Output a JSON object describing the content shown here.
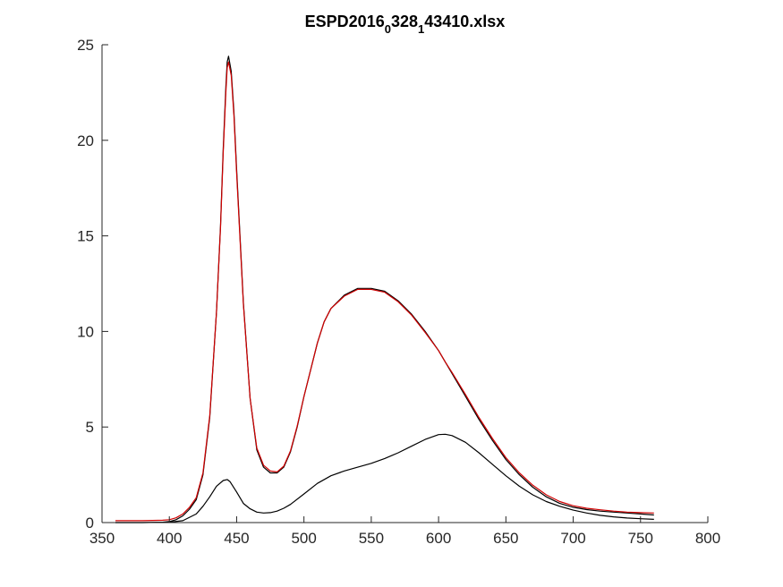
{
  "chart_data": {
    "type": "line",
    "title": {
      "parts": [
        {
          "text": "ESPD2016",
          "sub": false
        },
        {
          "text": "0",
          "sub": true
        },
        {
          "text": "328",
          "sub": false
        },
        {
          "text": "1",
          "sub": true
        },
        {
          "text": "43410.xlsx",
          "sub": false
        }
      ]
    },
    "xlabel": "",
    "ylabel": "",
    "xlim": [
      350,
      800
    ],
    "ylim": [
      0,
      25
    ],
    "xticks": [
      "350",
      "400",
      "450",
      "500",
      "550",
      "600",
      "650",
      "700",
      "750",
      "800"
    ],
    "yticks": [
      "0",
      "5",
      "10",
      "15",
      "20",
      "25"
    ],
    "grid": false,
    "legend": "none",
    "series": [
      {
        "color": "#000000",
        "x": [
          360,
          380,
          395,
          400,
          405,
          410,
          415,
          420,
          425,
          430,
          435,
          438,
          440,
          442,
          443,
          444,
          446,
          448,
          450,
          455,
          460,
          465,
          470,
          475,
          480,
          485,
          490,
          495,
          500,
          505,
          510,
          515,
          520,
          530,
          540,
          550,
          560,
          570,
          580,
          590,
          600,
          605,
          610,
          620,
          630,
          640,
          650,
          660,
          670,
          680,
          690,
          700,
          710,
          720,
          730,
          740,
          750,
          760
        ],
        "y": [
          0.0,
          0.0,
          0.02,
          0.05,
          0.15,
          0.35,
          0.7,
          1.2,
          2.5,
          5.5,
          11.0,
          15.5,
          19.5,
          22.8,
          24.1,
          24.4,
          23.6,
          21.5,
          18.5,
          11.5,
          6.5,
          3.8,
          2.9,
          2.6,
          2.6,
          2.9,
          3.7,
          5.0,
          6.6,
          8.0,
          9.4,
          10.5,
          11.2,
          11.9,
          12.25,
          12.25,
          12.1,
          11.6,
          10.9,
          10.0,
          9.0,
          8.4,
          7.8,
          6.6,
          5.4,
          4.3,
          3.3,
          2.5,
          1.85,
          1.35,
          1.0,
          0.8,
          0.68,
          0.6,
          0.55,
          0.5,
          0.45,
          0.4
        ]
      },
      {
        "color": "#d00000",
        "x": [
          360,
          380,
          395,
          400,
          405,
          410,
          415,
          420,
          425,
          430,
          435,
          438,
          440,
          442,
          443,
          444,
          446,
          448,
          450,
          455,
          460,
          465,
          470,
          475,
          480,
          485,
          490,
          495,
          500,
          505,
          510,
          515,
          520,
          530,
          540,
          550,
          560,
          570,
          580,
          590,
          600,
          605,
          610,
          620,
          630,
          640,
          650,
          660,
          670,
          680,
          690,
          700,
          710,
          720,
          730,
          740,
          750,
          760
        ],
        "y": [
          0.1,
          0.1,
          0.12,
          0.15,
          0.25,
          0.45,
          0.8,
          1.3,
          2.6,
          5.6,
          11.0,
          15.4,
          19.3,
          22.5,
          23.8,
          24.1,
          23.4,
          21.3,
          18.3,
          11.4,
          6.5,
          3.9,
          3.0,
          2.7,
          2.65,
          2.95,
          3.75,
          5.05,
          6.6,
          8.0,
          9.4,
          10.5,
          11.2,
          11.85,
          12.2,
          12.2,
          12.05,
          11.55,
          10.85,
          9.95,
          9.0,
          8.4,
          7.85,
          6.7,
          5.5,
          4.4,
          3.4,
          2.6,
          1.95,
          1.45,
          1.1,
          0.88,
          0.75,
          0.67,
          0.6,
          0.55,
          0.52,
          0.5
        ]
      },
      {
        "color": "#000000",
        "x": [
          360,
          380,
          400,
          410,
          420,
          425,
          430,
          435,
          440,
          443,
          445,
          450,
          455,
          460,
          465,
          470,
          475,
          480,
          485,
          490,
          500,
          510,
          520,
          530,
          540,
          550,
          560,
          570,
          580,
          590,
          600,
          605,
          610,
          620,
          630,
          640,
          650,
          660,
          670,
          680,
          690,
          700,
          710,
          720,
          730,
          740,
          750,
          760
        ],
        "y": [
          0.0,
          0.0,
          0.02,
          0.1,
          0.45,
          0.85,
          1.35,
          1.9,
          2.2,
          2.25,
          2.15,
          1.6,
          1.0,
          0.72,
          0.55,
          0.5,
          0.52,
          0.6,
          0.75,
          0.95,
          1.5,
          2.05,
          2.45,
          2.7,
          2.9,
          3.1,
          3.35,
          3.65,
          4.0,
          4.35,
          4.6,
          4.62,
          4.55,
          4.2,
          3.65,
          3.05,
          2.45,
          1.9,
          1.45,
          1.1,
          0.85,
          0.65,
          0.5,
          0.38,
          0.3,
          0.24,
          0.2,
          0.17
        ]
      }
    ]
  }
}
